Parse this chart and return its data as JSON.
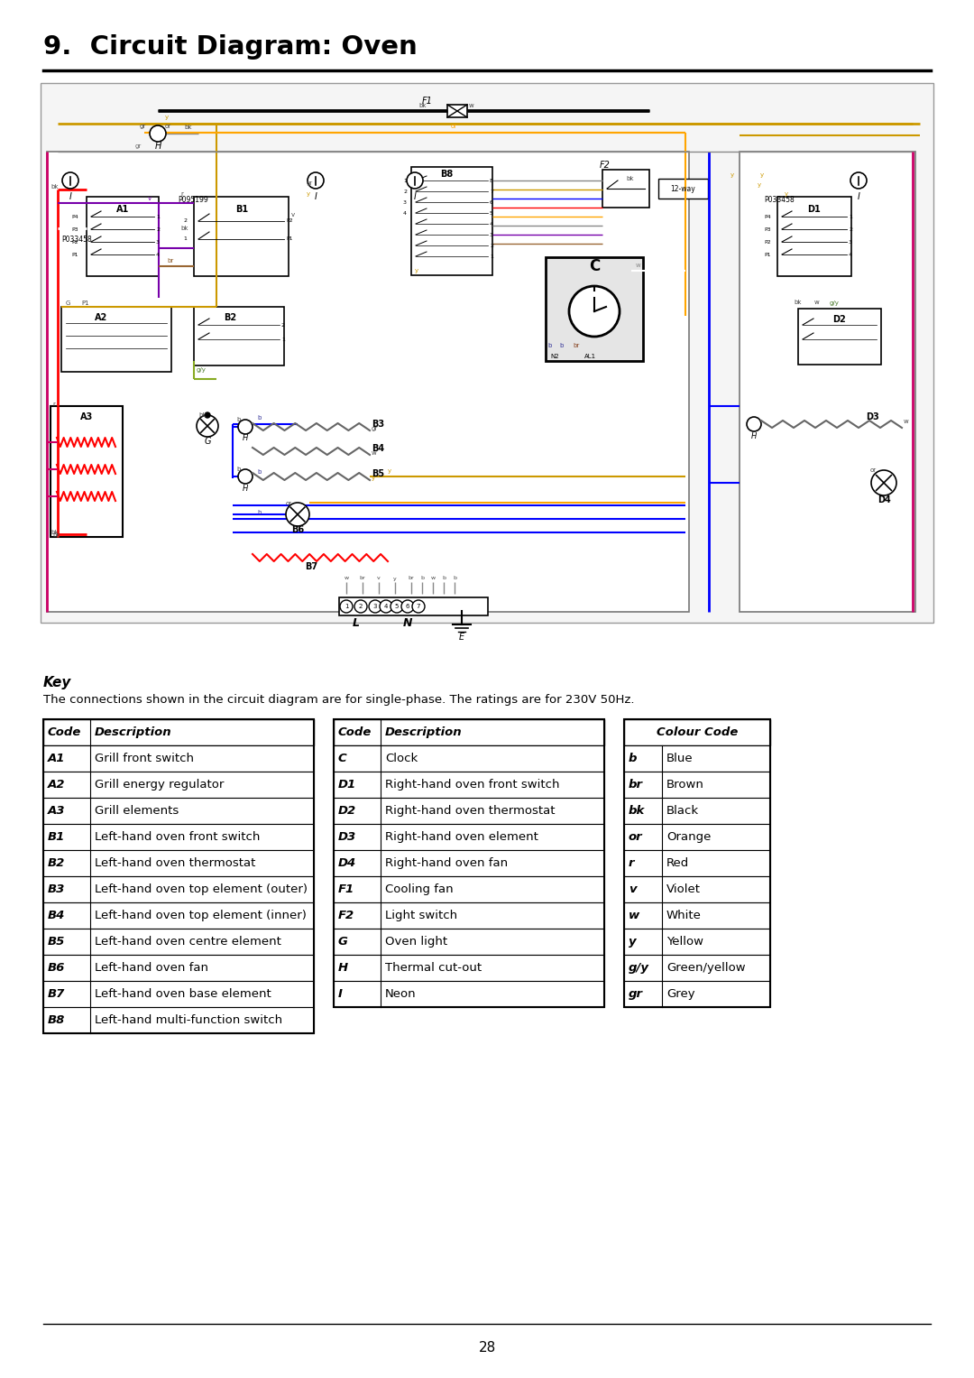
{
  "title": "9.  Circuit Diagram: Oven",
  "key_text": "Key",
  "key_desc": "The connections shown in the circuit diagram are for single-phase. The ratings are for 230V 50Hz.",
  "table1_headers": [
    "Code",
    "Description"
  ],
  "table1_rows": [
    [
      "A1",
      "Grill front switch"
    ],
    [
      "A2",
      "Grill energy regulator"
    ],
    [
      "A3",
      "Grill elements"
    ],
    [
      "B1",
      "Left-hand oven front switch"
    ],
    [
      "B2",
      "Left-hand oven thermostat"
    ],
    [
      "B3",
      "Left-hand oven top element (outer)"
    ],
    [
      "B4",
      "Left-hand oven top element (inner)"
    ],
    [
      "B5",
      "Left-hand oven centre element"
    ],
    [
      "B6",
      "Left-hand oven fan"
    ],
    [
      "B7",
      "Left-hand oven base element"
    ],
    [
      "B8",
      "Left-hand multi-function switch"
    ]
  ],
  "table2_headers": [
    "Code",
    "Description"
  ],
  "table2_rows": [
    [
      "C",
      "Clock"
    ],
    [
      "D1",
      "Right-hand oven front switch"
    ],
    [
      "D2",
      "Right-hand oven thermostat"
    ],
    [
      "D3",
      "Right-hand oven element"
    ],
    [
      "D4",
      "Right-hand oven fan"
    ],
    [
      "F1",
      "Cooling fan"
    ],
    [
      "F2",
      "Light switch"
    ],
    [
      "G",
      "Oven light"
    ],
    [
      "H",
      "Thermal cut-out"
    ],
    [
      "I",
      "Neon"
    ]
  ],
  "table3_header": "Colour Code",
  "table3_rows": [
    [
      "b",
      "Blue"
    ],
    [
      "br",
      "Brown"
    ],
    [
      "bk",
      "Black"
    ],
    [
      "or",
      "Orange"
    ],
    [
      "r",
      "Red"
    ],
    [
      "v",
      "Violet"
    ],
    [
      "w",
      "White"
    ],
    [
      "y",
      "Yellow"
    ],
    [
      "g/y",
      "Green/yellow"
    ],
    [
      "gr",
      "Grey"
    ]
  ],
  "page_number": "28",
  "bg_color": "#ffffff"
}
